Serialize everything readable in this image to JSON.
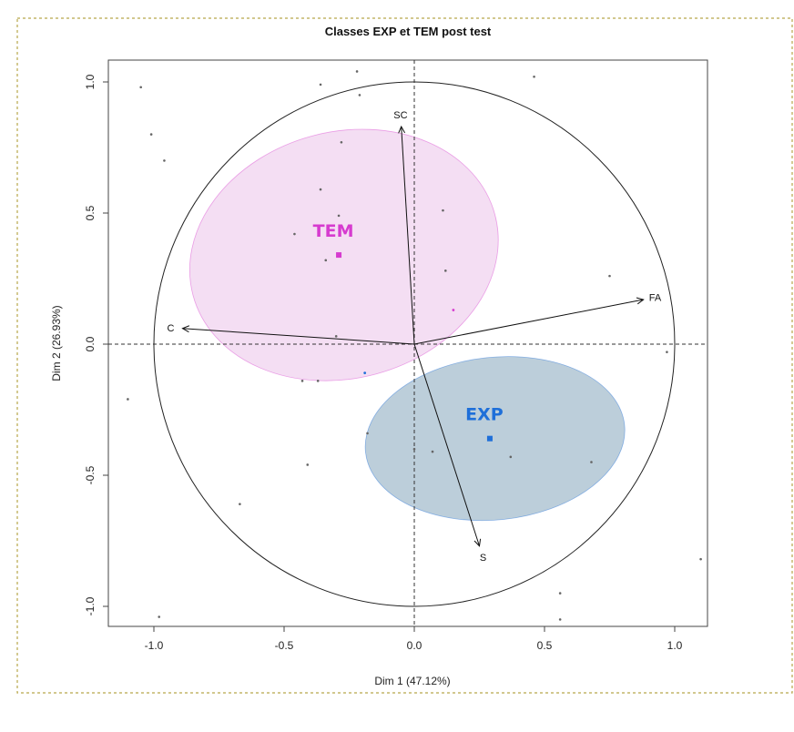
{
  "chart_data": {
    "type": "scatter",
    "title": "Classes EXP et TEM post test",
    "xlabel": "Dim 1 (47.12%)",
    "ylabel": "Dim 2 (26.93%)",
    "xlim": [
      -1.17,
      1.12
    ],
    "ylim": [
      -1.07,
      1.08
    ],
    "x_ticks": [
      -1.0,
      -0.5,
      0.0,
      0.5,
      1.0
    ],
    "x_tick_labels": [
      "-1.0",
      "-0.5",
      "0.0",
      "0.5",
      "1.0"
    ],
    "y_ticks": [
      -1.0,
      -0.5,
      0.0,
      0.5,
      1.0
    ],
    "y_tick_labels": [
      "-1.0",
      "-0.5",
      "0.0",
      "0.5",
      "1.0"
    ],
    "reference_lines": {
      "x": 0,
      "y": 0,
      "style": "dashed"
    },
    "unit_circle_radius": 1.0,
    "variables": [
      {
        "name": "SC",
        "x": -0.05,
        "y": 0.83
      },
      {
        "name": "FA",
        "x": 0.88,
        "y": 0.17
      },
      {
        "name": "C",
        "x": -0.89,
        "y": 0.06
      },
      {
        "name": "S",
        "x": 0.25,
        "y": -0.77
      }
    ],
    "groups": [
      {
        "name": "TEM",
        "color": "#d63bcf",
        "fill": "#f3dcf2",
        "centroid": {
          "x": -0.29,
          "y": 0.34
        },
        "ellipse": {
          "cx": -0.27,
          "cy": 0.34,
          "rx": 0.6,
          "ry": 0.47,
          "rotation_deg": -15
        }
      },
      {
        "name": "EXP",
        "color": "#1e6fd9",
        "fill": "#b8cbd8",
        "centroid": {
          "x": 0.29,
          "y": -0.36
        },
        "ellipse": {
          "cx": 0.31,
          "cy": -0.36,
          "rx": 0.5,
          "ry": 0.31,
          "rotation_deg": -6
        }
      }
    ],
    "individuals": [
      {
        "x": -1.05,
        "y": 0.98
      },
      {
        "x": -1.01,
        "y": 0.8
      },
      {
        "x": -0.96,
        "y": 0.7
      },
      {
        "x": -0.36,
        "y": 0.99
      },
      {
        "x": -0.22,
        "y": 1.04
      },
      {
        "x": -0.21,
        "y": 0.95
      },
      {
        "x": 0.46,
        "y": 1.02
      },
      {
        "x": -0.28,
        "y": 0.77
      },
      {
        "x": -0.36,
        "y": 0.59
      },
      {
        "x": -0.29,
        "y": 0.49
      },
      {
        "x": -0.46,
        "y": 0.42
      },
      {
        "x": -0.34,
        "y": 0.32
      },
      {
        "x": 0.11,
        "y": 0.51
      },
      {
        "x": 0.12,
        "y": 0.28
      },
      {
        "x": 0.75,
        "y": 0.26
      },
      {
        "x": -0.3,
        "y": 0.03
      },
      {
        "x": 0.97,
        "y": -0.03
      },
      {
        "x": -1.1,
        "y": -0.21
      },
      {
        "x": -0.43,
        "y": -0.14
      },
      {
        "x": -0.37,
        "y": -0.14
      },
      {
        "x": -0.18,
        "y": -0.34
      },
      {
        "x": 0.0,
        "y": -0.4
      },
      {
        "x": 0.07,
        "y": -0.41
      },
      {
        "x": 0.37,
        "y": -0.43
      },
      {
        "x": 0.68,
        "y": -0.45
      },
      {
        "x": -0.41,
        "y": -0.46
      },
      {
        "x": -0.67,
        "y": -0.61
      },
      {
        "x": 1.1,
        "y": -0.82
      },
      {
        "x": 0.56,
        "y": -0.95
      },
      {
        "x": 0.56,
        "y": -1.05
      },
      {
        "x": -0.98,
        "y": -1.04
      }
    ],
    "individuals_colored": [
      {
        "x": 0.15,
        "y": 0.13,
        "color": "#d63bcf"
      },
      {
        "x": -0.19,
        "y": -0.11,
        "color": "#1e6fd9"
      }
    ]
  }
}
